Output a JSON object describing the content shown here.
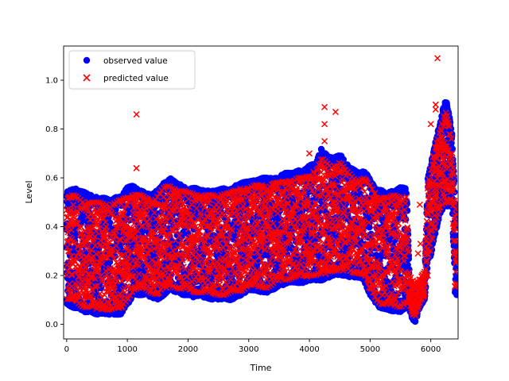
{
  "chart_data": {
    "type": "scatter",
    "title": "",
    "xlabel": "Time",
    "ylabel": "Level",
    "xlim": [
      -50,
      6450
    ],
    "ylim": [
      -0.06,
      1.14
    ],
    "xticks": [
      0,
      1000,
      2000,
      3000,
      4000,
      5000,
      6000
    ],
    "yticks": [
      0.0,
      0.2,
      0.4,
      0.6,
      0.8,
      1.0
    ],
    "xtick_labels": [
      "0",
      "1000",
      "2000",
      "3000",
      "4000",
      "5000",
      "6000"
    ],
    "ytick_labels": [
      "0.0",
      "0.2",
      "0.4",
      "0.6",
      "0.8",
      "1.0"
    ],
    "grid": false,
    "legend_position": "top-left",
    "series": [
      {
        "name": "observed value",
        "marker": "circle",
        "color": "#0000ff",
        "envelope": {
          "x": [
            0,
            100,
            200,
            300,
            400,
            500,
            600,
            700,
            800,
            900,
            1000,
            1100,
            1200,
            1300,
            1400,
            1500,
            1600,
            1700,
            1800,
            1900,
            2000,
            2100,
            2200,
            2300,
            2400,
            2500,
            2600,
            2700,
            2800,
            2900,
            3000,
            3100,
            3200,
            3300,
            3400,
            3500,
            3600,
            3700,
            3800,
            3900,
            4000,
            4100,
            4200,
            4300,
            4400,
            4500,
            4600,
            4700,
            4800,
            4900,
            5000,
            5100,
            5200,
            5300,
            5400,
            5500,
            5600,
            5650,
            5700,
            5750,
            5800,
            5850,
            5900,
            5950,
            6000,
            6050,
            6100,
            6150,
            6200,
            6250,
            6300,
            6350,
            6400,
            6430
          ],
          "low": [
            0.08,
            0.07,
            0.06,
            0.05,
            0.05,
            0.04,
            0.04,
            0.04,
            0.04,
            0.04,
            0.08,
            0.12,
            0.12,
            0.12,
            0.11,
            0.1,
            0.12,
            0.14,
            0.13,
            0.12,
            0.12,
            0.11,
            0.11,
            0.11,
            0.1,
            0.1,
            0.1,
            0.1,
            0.11,
            0.12,
            0.14,
            0.14,
            0.13,
            0.13,
            0.14,
            0.16,
            0.16,
            0.17,
            0.17,
            0.17,
            0.18,
            0.18,
            0.18,
            0.19,
            0.2,
            0.2,
            0.2,
            0.19,
            0.19,
            0.18,
            0.12,
            0.08,
            0.06,
            0.06,
            0.05,
            0.05,
            0.07,
            0.06,
            0.02,
            0.01,
            0.06,
            0.08,
            0.1,
            0.26,
            0.28,
            0.35,
            0.4,
            0.45,
            0.47,
            0.48,
            0.48,
            0.5,
            0.13,
            0.12
          ],
          "high": [
            0.55,
            0.56,
            0.55,
            0.54,
            0.53,
            0.52,
            0.52,
            0.51,
            0.52,
            0.53,
            0.56,
            0.57,
            0.55,
            0.54,
            0.53,
            0.55,
            0.58,
            0.6,
            0.58,
            0.57,
            0.56,
            0.56,
            0.55,
            0.55,
            0.55,
            0.55,
            0.56,
            0.56,
            0.57,
            0.58,
            0.59,
            0.59,
            0.6,
            0.6,
            0.6,
            0.61,
            0.62,
            0.62,
            0.63,
            0.63,
            0.65,
            0.66,
            0.72,
            0.69,
            0.68,
            0.7,
            0.66,
            0.64,
            0.62,
            0.63,
            0.6,
            0.55,
            0.55,
            0.54,
            0.55,
            0.56,
            0.56,
            0.18,
            0.16,
            0.15,
            0.16,
            0.18,
            0.2,
            0.6,
            0.65,
            0.72,
            0.78,
            0.82,
            0.88,
            0.92,
            0.86,
            0.78,
            0.5,
            0.48
          ]
        }
      },
      {
        "name": "predicted value",
        "marker": "x",
        "color": "#ff0000",
        "envelope": {
          "x": [
            0,
            100,
            200,
            300,
            400,
            500,
            600,
            700,
            800,
            900,
            1000,
            1100,
            1200,
            1300,
            1400,
            1500,
            1600,
            1700,
            1800,
            1900,
            2000,
            2100,
            2200,
            2300,
            2400,
            2500,
            2600,
            2700,
            2800,
            2900,
            3000,
            3100,
            3200,
            3300,
            3400,
            3500,
            3600,
            3700,
            3800,
            3900,
            4000,
            4100,
            4200,
            4300,
            4400,
            4500,
            4600,
            4700,
            4800,
            4900,
            5000,
            5100,
            5200,
            5300,
            5400,
            5500,
            5600,
            5650,
            5700,
            5750,
            5800,
            5850,
            5900,
            5950,
            6000,
            6050,
            6100,
            6150,
            6200,
            6250,
            6300,
            6350,
            6400,
            6430
          ],
          "low": [
            0.1,
            0.09,
            0.08,
            0.07,
            0.07,
            0.06,
            0.06,
            0.06,
            0.06,
            0.06,
            0.1,
            0.14,
            0.14,
            0.14,
            0.13,
            0.12,
            0.14,
            0.16,
            0.15,
            0.14,
            0.14,
            0.13,
            0.13,
            0.13,
            0.12,
            0.12,
            0.12,
            0.12,
            0.13,
            0.14,
            0.16,
            0.16,
            0.15,
            0.15,
            0.16,
            0.18,
            0.18,
            0.19,
            0.19,
            0.19,
            0.2,
            0.2,
            0.2,
            0.21,
            0.22,
            0.22,
            0.22,
            0.21,
            0.21,
            0.2,
            0.14,
            0.1,
            0.08,
            0.08,
            0.07,
            0.07,
            0.09,
            0.08,
            0.04,
            0.03,
            0.08,
            0.1,
            0.12,
            0.28,
            0.3,
            0.37,
            0.42,
            0.47,
            0.49,
            0.5,
            0.5,
            0.52,
            0.15,
            0.14
          ],
          "high": [
            0.52,
            0.53,
            0.52,
            0.51,
            0.5,
            0.5,
            0.5,
            0.49,
            0.5,
            0.51,
            0.53,
            0.54,
            0.53,
            0.52,
            0.51,
            0.53,
            0.56,
            0.57,
            0.56,
            0.55,
            0.54,
            0.54,
            0.53,
            0.53,
            0.53,
            0.53,
            0.54,
            0.54,
            0.55,
            0.56,
            0.56,
            0.57,
            0.57,
            0.57,
            0.58,
            0.58,
            0.59,
            0.59,
            0.6,
            0.6,
            0.62,
            0.63,
            0.68,
            0.66,
            0.65,
            0.67,
            0.63,
            0.61,
            0.6,
            0.6,
            0.57,
            0.53,
            0.53,
            0.52,
            0.53,
            0.53,
            0.53,
            0.2,
            0.18,
            0.17,
            0.18,
            0.2,
            0.22,
            0.58,
            0.63,
            0.7,
            0.75,
            0.79,
            0.85,
            0.88,
            0.83,
            0.75,
            0.48,
            0.46
          ]
        },
        "outliers": [
          {
            "x": 1150,
            "y": 0.86
          },
          {
            "x": 1150,
            "y": 0.64
          },
          {
            "x": 4000,
            "y": 0.7
          },
          {
            "x": 4250,
            "y": 0.89
          },
          {
            "x": 4250,
            "y": 0.82
          },
          {
            "x": 4250,
            "y": 0.75
          },
          {
            "x": 4430,
            "y": 0.87
          },
          {
            "x": 5820,
            "y": 0.49
          },
          {
            "x": 5830,
            "y": 0.33
          },
          {
            "x": 5790,
            "y": 0.29
          },
          {
            "x": 5950,
            "y": 0.2
          },
          {
            "x": 6000,
            "y": 0.82
          },
          {
            "x": 6080,
            "y": 0.9
          },
          {
            "x": 6080,
            "y": 0.88
          },
          {
            "x": 6110,
            "y": 1.09
          },
          {
            "x": 6430,
            "y": 0.34
          },
          {
            "x": 6430,
            "y": 0.29
          },
          {
            "x": 6420,
            "y": 0.26
          }
        ]
      }
    ]
  }
}
